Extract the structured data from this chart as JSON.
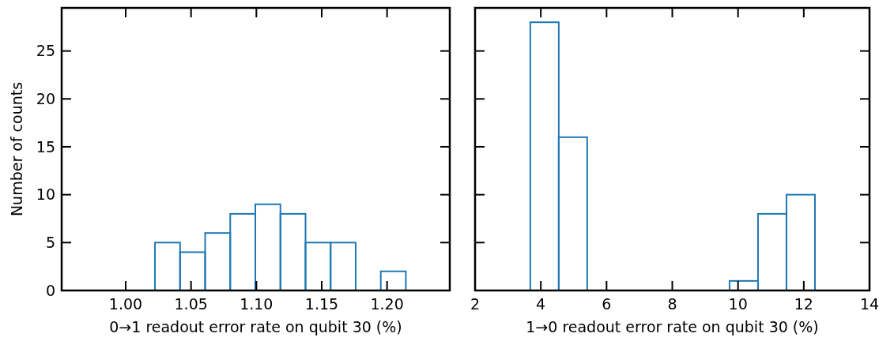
{
  "chart_data": [
    {
      "type": "histogram",
      "xlabel": "0→1 readout error rate on qubit 30 (%)",
      "ylabel": "Number of counts",
      "color": "#1f77b4",
      "bins": [
        1.0224,
        1.0416,
        1.0608,
        1.08,
        1.0992,
        1.1184,
        1.1376,
        1.1568,
        1.176,
        1.1952,
        1.2144
      ],
      "values": [
        5,
        4,
        6,
        8,
        9,
        8,
        5,
        5,
        0,
        2
      ],
      "xlim": [
        0.951,
        1.248
      ],
      "xticks": [
        {
          "value": 1.0,
          "label": "1.00"
        },
        1.05,
        {
          "value": 1.1,
          "label": "1.10"
        },
        1.15,
        {
          "value": 1.2,
          "label": "1.20"
        }
      ],
      "ylim": [
        0,
        29.5
      ],
      "yticks": [
        0,
        5,
        10,
        15,
        20,
        25
      ],
      "grid": false
    },
    {
      "type": "histogram",
      "xlabel": "1→0 readout error rate on qubit 30 (%)",
      "color": "#1f77b4",
      "bins": [
        3.68,
        4.546,
        5.412,
        6.278,
        7.144,
        8.01,
        8.876,
        9.742,
        10.608,
        11.474,
        12.34
      ],
      "values": [
        28,
        16,
        0,
        0,
        0,
        0,
        0,
        1,
        8,
        10
      ],
      "xlim": [
        2,
        14
      ],
      "xticks": [
        2,
        4,
        6,
        8,
        10,
        12,
        14
      ],
      "ylim": [
        0,
        29.5
      ],
      "yticks": [
        0,
        5,
        10,
        15,
        20,
        25
      ],
      "tick_labels": "x",
      "grid": false
    }
  ]
}
